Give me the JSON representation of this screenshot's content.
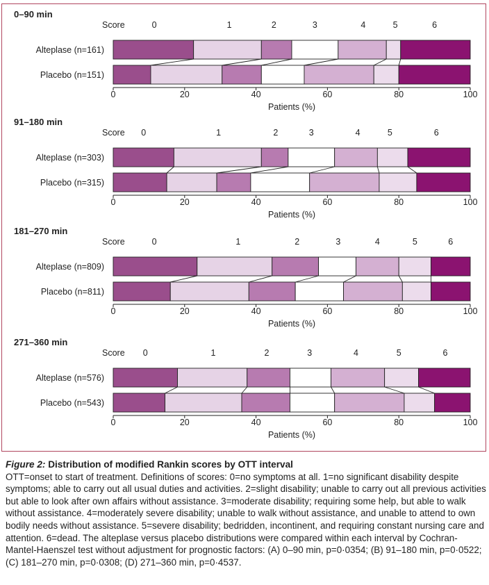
{
  "colors": {
    "frame": "#b0455e",
    "score_0": "#9a4e8c",
    "score_1": "#e6d3e6",
    "score_2": "#b77bb0",
    "score_3": "#ffffff",
    "score_4": "#d4b0d2",
    "score_5": "#ecdcec",
    "score_6": "#8b1370"
  },
  "chart_data": [
    {
      "type": "bar",
      "orientation": "horizontal-stacked-100",
      "title": "0–90 min",
      "score_label": "Score",
      "score_categories": [
        "0",
        "1",
        "2",
        "3",
        "4",
        "5",
        "6"
      ],
      "score_label_positions": [
        11.5,
        32.5,
        45,
        56.5,
        70,
        79,
        90
      ],
      "series": [
        {
          "name": "Alteplase (n=161)",
          "values": [
            22.5,
            19,
            8.5,
            13,
            13.5,
            4,
            19.5
          ]
        },
        {
          "name": "Placebo (n=151)",
          "values": [
            10.5,
            20,
            11,
            12,
            19.5,
            7,
            20
          ]
        }
      ],
      "xlabel": "Patients (%)",
      "xticks": [
        "0",
        "20",
        "40",
        "60",
        "80",
        "100"
      ],
      "xlim": [
        0,
        100
      ]
    },
    {
      "type": "bar",
      "orientation": "horizontal-stacked-100",
      "title": "91–180 min",
      "score_label": "Score",
      "score_categories": [
        "0",
        "1",
        "2",
        "3",
        "4",
        "5",
        "6"
      ],
      "score_label_positions": [
        8.5,
        29.5,
        45.5,
        55.5,
        68.5,
        77.5,
        90.5
      ],
      "series": [
        {
          "name": "Alteplase (n=303)",
          "values": [
            17,
            24.5,
            7.5,
            13,
            12,
            8.5,
            17.5
          ]
        },
        {
          "name": "Placebo (n=315)",
          "values": [
            15,
            14,
            9.5,
            16.5,
            19.5,
            10.5,
            15
          ]
        }
      ],
      "xlabel": "Patients (%)",
      "xticks": [
        "0",
        "20",
        "40",
        "60",
        "80",
        "100"
      ],
      "xlim": [
        0,
        100
      ]
    },
    {
      "type": "bar",
      "orientation": "horizontal-stacked-100",
      "title": "181–270 min",
      "score_label": "Score",
      "score_categories": [
        "0",
        "1",
        "2",
        "3",
        "4",
        "5",
        "6"
      ],
      "score_label_positions": [
        11.5,
        35,
        51.5,
        63,
        74,
        84.5,
        94.5
      ],
      "series": [
        {
          "name": "Alteplase (n=809)",
          "values": [
            23.5,
            21,
            13,
            10.5,
            12,
            9,
            11
          ]
        },
        {
          "name": "Placebo (n=811)",
          "values": [
            16,
            22,
            13,
            13.5,
            16.5,
            8,
            11
          ]
        }
      ],
      "xlabel": "Patients (%)",
      "xticks": [
        "0",
        "20",
        "40",
        "60",
        "80",
        "100"
      ],
      "xlim": [
        0,
        100
      ]
    },
    {
      "type": "bar",
      "orientation": "horizontal-stacked-100",
      "title": "271–360 min",
      "score_label": "Score",
      "score_categories": [
        "0",
        "1",
        "2",
        "3",
        "4",
        "5",
        "6"
      ],
      "score_label_positions": [
        9,
        28,
        43,
        55,
        68,
        80,
        93
      ],
      "series": [
        {
          "name": "Alteplase (n=576)",
          "values": [
            18,
            19.5,
            12,
            11.5,
            15,
            9.5,
            14.5
          ]
        },
        {
          "name": "Placebo (n=543)",
          "values": [
            14.5,
            21.5,
            13.5,
            12.5,
            19.5,
            8.5,
            10
          ]
        }
      ],
      "xlabel": "Patients (%)",
      "xticks": [
        "0",
        "20",
        "40",
        "60",
        "80",
        "100"
      ],
      "xlim": [
        0,
        100
      ]
    }
  ],
  "caption": {
    "figure_label": "Figure 2:",
    "title": "Distribution of modified Rankin scores by OTT interval",
    "text": "OTT=onset to start of treatment. Definitions of scores: 0=no symptoms at all. 1=no significant disability despite symptoms; able to carry out all usual duties and activities. 2=slight disability; unable to carry out all previous activities but able to look after own affairs without assistance. 3=moderate disability; requiring some help, but able to walk without assistance. 4=moderately severe disability; unable to walk without assistance, and unable to attend to own bodily needs without assistance. 5=severe disability; bedridden, incontinent, and requiring constant nursing care and attention. 6=dead. The alteplase versus placebo distributions were compared within each interval by Cochran-Mantel-Haenszel test without adjustment for prognostic factors: (A) 0–90 min, p=0·0354; (B) 91–180 min, p=0·0522; (C) 181–270 min, p=0·0308; (D) 271–360 min, p=0·4537."
  }
}
